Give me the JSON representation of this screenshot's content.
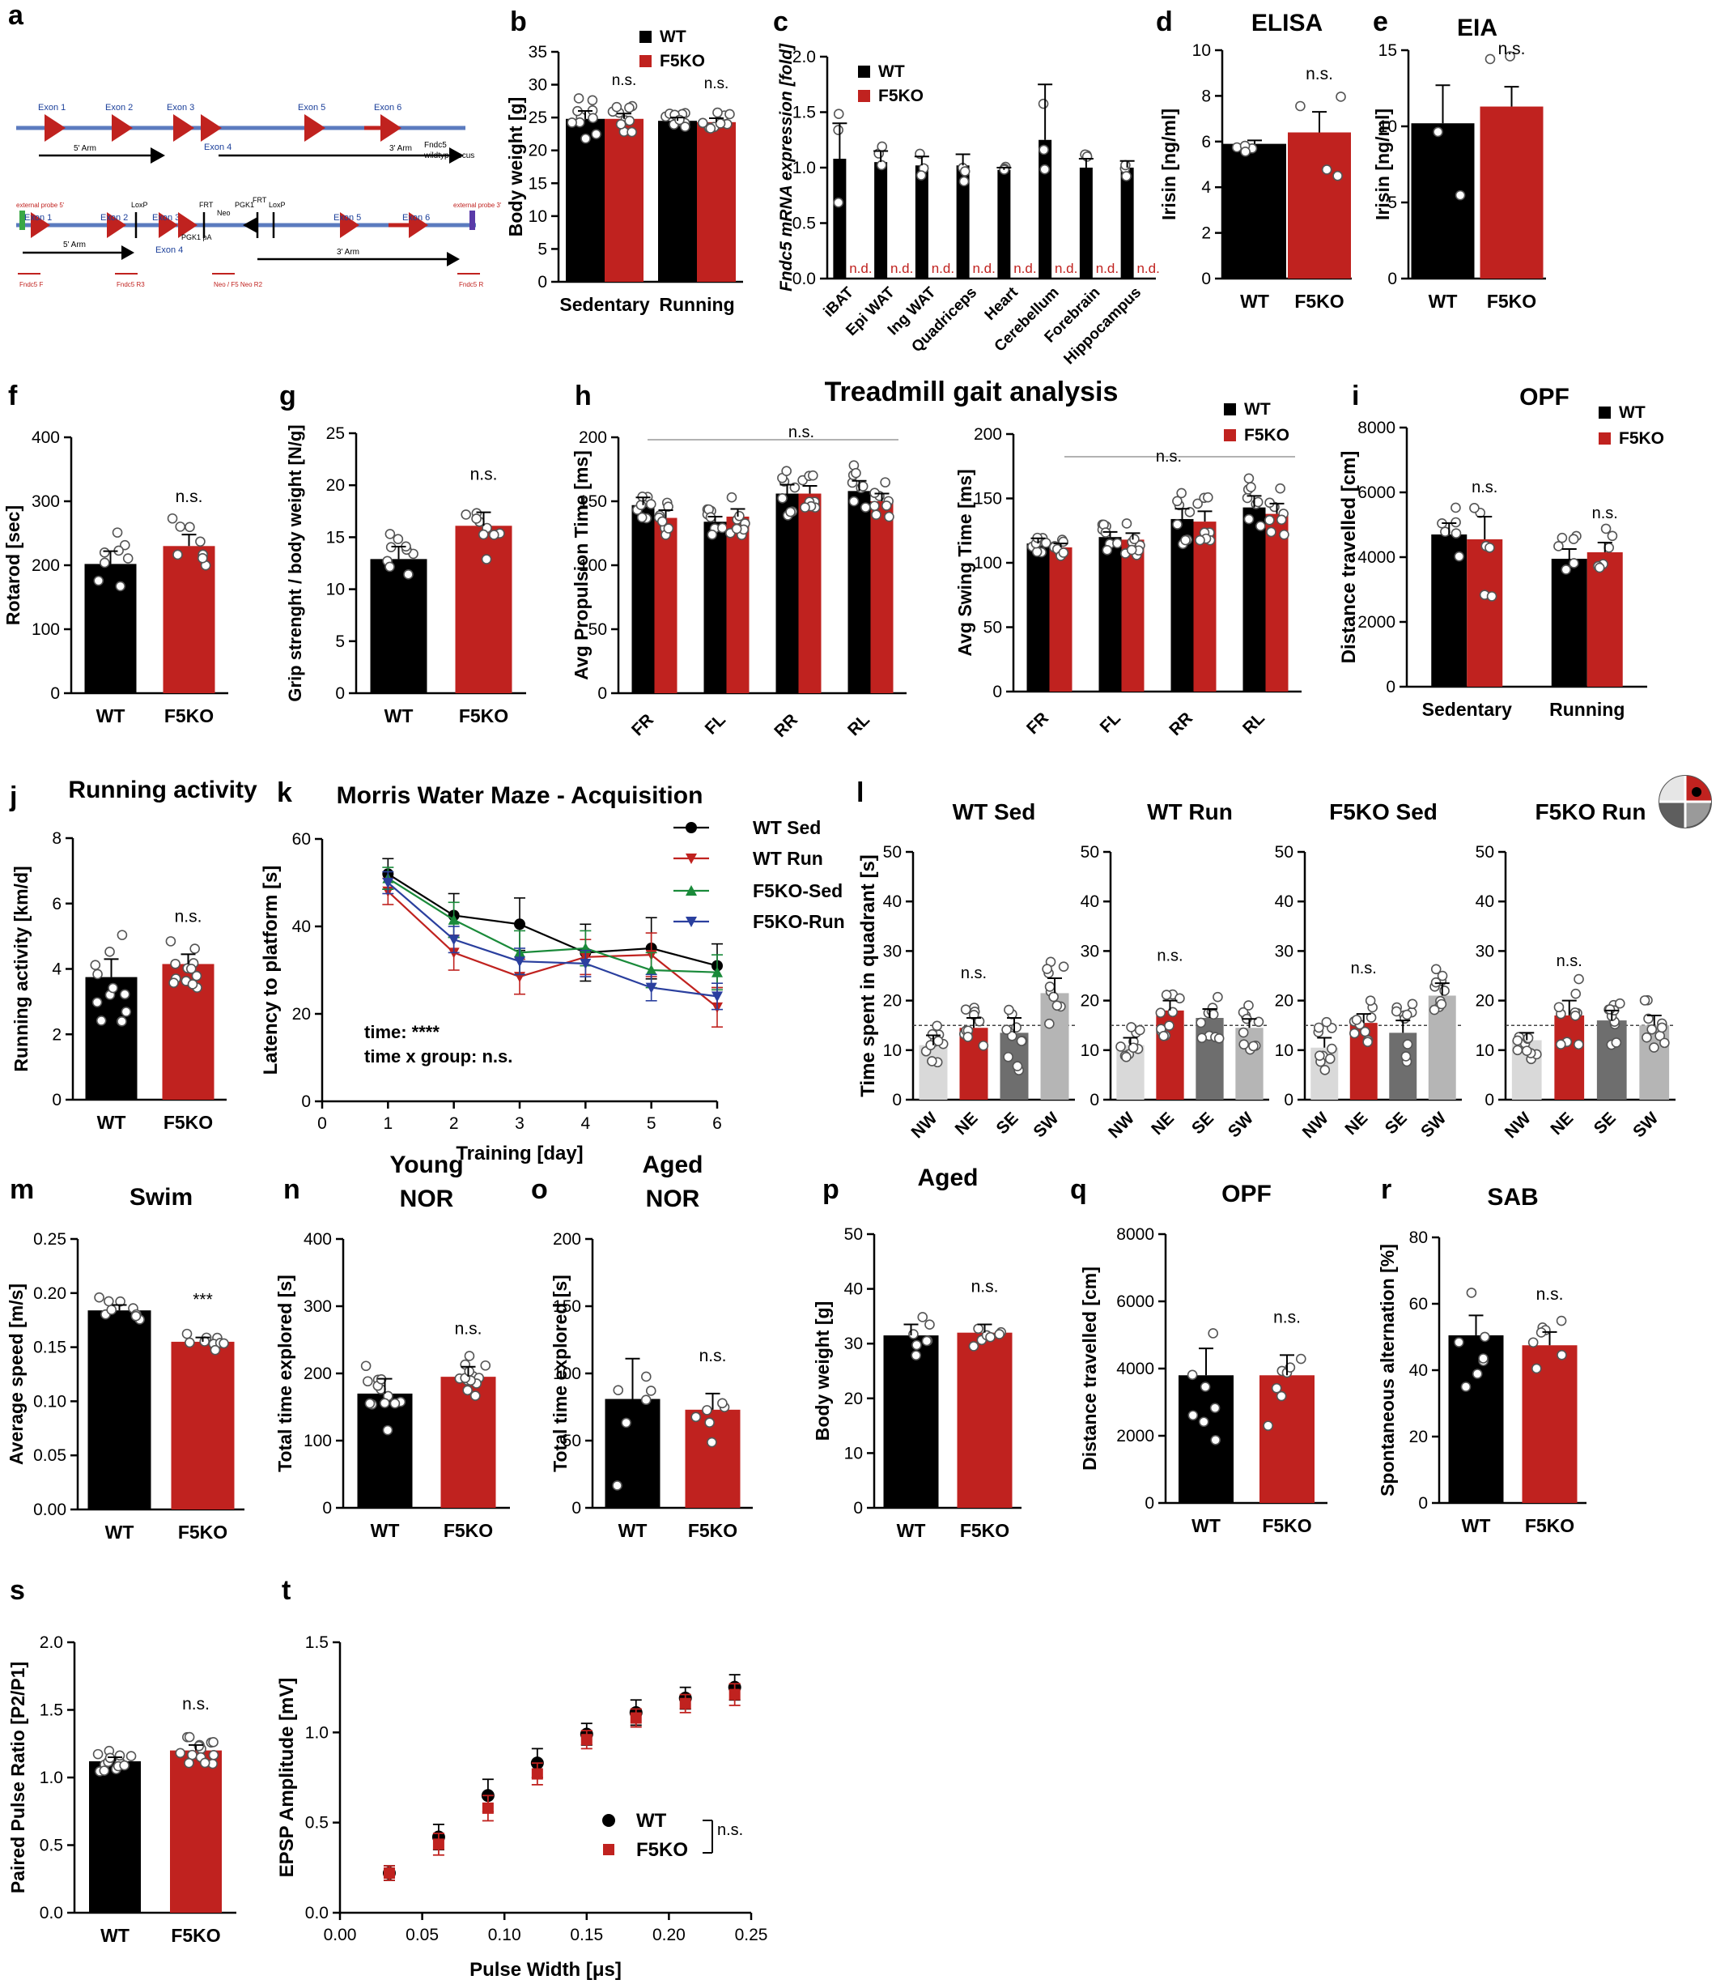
{
  "colors": {
    "wt": "#000000",
    "f5ko": "#c0221f",
    "light": "#d9d9d9",
    "dark": "#6e6e6e",
    "mid": "#b5b5b5",
    "green": "#1a8a3a",
    "blue": "#2a3f9e"
  },
  "legend": {
    "wt": "WT",
    "f5ko": "F5KO",
    "wt_sed": "WT Sed",
    "wt_run": "WT Run",
    "f5ko_sed": "F5KO-Sed",
    "f5ko_run": "F5KO-Run"
  },
  "panels": {
    "a": {
      "letter": "a",
      "wt_locus": [
        "Fndc5",
        "wildtype locus"
      ],
      "tg_locus": [
        "Fndc5",
        "targeted locus"
      ],
      "exons_wt": [
        "Exon 1",
        "Exon 2",
        "Exon 3",
        "Exon 4",
        "Exon 5",
        "Exon 6"
      ],
      "exons_tg": [
        "Exon 1",
        "Exon 2",
        "Exon 3",
        "Exon 4",
        "Exon 5",
        "Exon 6"
      ],
      "arms": [
        "5' Arm",
        "3' Arm",
        "5' Arm",
        "3' Arm"
      ],
      "elements": [
        "LoxP",
        "FRT",
        "Neo",
        "PGK1",
        "FRT",
        "LoxP",
        "PGK1 pA"
      ],
      "probes": [
        "external probe 5'",
        "external probe 3'"
      ],
      "primers": [
        "Fndc5 F",
        "Fndc5 R3",
        "Neo / F5 Neo R2",
        "Fndc5 R"
      ]
    }
  },
  "chart_data": [
    {
      "id": "b",
      "letter": "b",
      "type": "bar",
      "ylabel": "Body weight [g]",
      "ylim": [
        0,
        35
      ],
      "yticks": [
        0,
        5,
        10,
        15,
        20,
        25,
        30,
        35
      ],
      "categories": [
        "Sedentary",
        "Running"
      ],
      "series": [
        {
          "name": "WT",
          "values": [
            24.8,
            24.5
          ],
          "sem": [
            1.2,
            0.5
          ]
        },
        {
          "name": "F5KO",
          "values": [
            24.8,
            24.3
          ],
          "sem": [
            0.8,
            0.6
          ]
        }
      ],
      "annotations": [
        "n.s.",
        "n.s."
      ]
    },
    {
      "id": "c",
      "letter": "c",
      "type": "bar",
      "ylabel": "Fndc5 mRNA expression [fold]",
      "ylim": [
        0,
        2.0
      ],
      "yticks": [
        "0.0",
        "0.5",
        "1.0",
        "1.5",
        "2.0"
      ],
      "categories": [
        "iBAT",
        "Epi WAT",
        "Ing WAT",
        "Quadriceps",
        "Heart",
        "Cerebellum",
        "Forebrain",
        "Hippocampus"
      ],
      "series": [
        {
          "name": "WT",
          "values": [
            1.08,
            1.05,
            1.02,
            1.02,
            0.98,
            1.25,
            1.0,
            1.0
          ],
          "sem": [
            0.32,
            0.1,
            0.08,
            0.1,
            0.02,
            0.5,
            0.08,
            0.06
          ]
        },
        {
          "name": "F5KO",
          "values": [
            0,
            0,
            0,
            0,
            0,
            0,
            0,
            0
          ]
        }
      ],
      "annotations": [
        "n.d.",
        "n.d.",
        "n.d.",
        "n.d.",
        "n.d.",
        "n.d.",
        "n.d.",
        "n.d."
      ]
    },
    {
      "id": "d",
      "letter": "d",
      "type": "bar",
      "title": "ELISA",
      "ylabel": "Irisin [ng/ml]",
      "ylim": [
        0,
        10
      ],
      "yticks": [
        0,
        2,
        4,
        6,
        8,
        10
      ],
      "categories": [
        "WT",
        "F5KO"
      ],
      "values": [
        5.9,
        6.4
      ],
      "sem": [
        0.15,
        0.9
      ],
      "annotations": [
        "n.s."
      ]
    },
    {
      "id": "e",
      "letter": "e",
      "type": "bar",
      "title": "EIA",
      "ylabel": "Irisin [ng/ml]",
      "ylim": [
        0,
        15
      ],
      "yticks": [
        0,
        5,
        10,
        15
      ],
      "categories": [
        "WT",
        "F5KO"
      ],
      "values": [
        10.2,
        11.3
      ],
      "sem": [
        2.5,
        1.3
      ],
      "annotations": [
        "n.s."
      ]
    },
    {
      "id": "f",
      "letter": "f",
      "type": "bar",
      "ylabel": "Rotarod [sec]",
      "ylim": [
        0,
        400
      ],
      "yticks": [
        0,
        100,
        200,
        300,
        400
      ],
      "categories": [
        "WT",
        "F5KO"
      ],
      "values": [
        202,
        230
      ],
      "sem": [
        20,
        18
      ],
      "annotations": [
        "n.s."
      ]
    },
    {
      "id": "g",
      "letter": "g",
      "type": "bar",
      "ylabel": "Grip strenght / body weight [N/g]",
      "ylim": [
        0,
        25
      ],
      "yticks": [
        0,
        5,
        10,
        15,
        20,
        25
      ],
      "categories": [
        "WT",
        "F5KO"
      ],
      "values": [
        12.9,
        16.1
      ],
      "sem": [
        1.2,
        1.3
      ],
      "annotations": [
        "n.s."
      ]
    },
    {
      "id": "h1",
      "letter": "h",
      "type": "bar",
      "title": "Treadmill gait analysis",
      "ylabel": "Avg Propulsion Time [ms]",
      "ylim": [
        0,
        200
      ],
      "yticks": [
        0,
        50,
        100,
        150,
        200
      ],
      "categories": [
        "FR",
        "FL",
        "RR",
        "RL"
      ],
      "series": [
        {
          "name": "WT",
          "values": [
            147,
            134,
            156,
            158
          ],
          "sem": [
            6,
            4,
            7,
            8
          ]
        },
        {
          "name": "F5KO",
          "values": [
            137,
            138,
            156,
            150
          ],
          "sem": [
            6,
            6,
            6,
            6
          ]
        }
      ],
      "annotations": [
        "n.s."
      ]
    },
    {
      "id": "h2",
      "type": "bar",
      "ylabel": "Avg Swing Time [ms]",
      "ylim": [
        0,
        200
      ],
      "yticks": [
        0,
        50,
        100,
        150,
        200
      ],
      "categories": [
        "FR",
        "FL",
        "RR",
        "RL"
      ],
      "series": [
        {
          "name": "WT",
          "values": [
            115,
            120,
            134,
            143
          ],
          "sem": [
            4,
            4,
            8,
            9
          ]
        },
        {
          "name": "F5KO",
          "values": [
            112,
            118,
            132,
            138
          ],
          "sem": [
            3,
            5,
            8,
            8
          ]
        }
      ],
      "annotations": [
        "n.s."
      ]
    },
    {
      "id": "i",
      "letter": "i",
      "type": "bar",
      "title": "OPF",
      "ylabel": "Distance travelled [cm]",
      "ylim": [
        0,
        8000
      ],
      "yticks": [
        0,
        2000,
        4000,
        6000,
        8000
      ],
      "categories": [
        "Sedentary",
        "Running"
      ],
      "series": [
        {
          "name": "WT",
          "values": [
            4700,
            3950
          ],
          "sem": [
            350,
            300
          ]
        },
        {
          "name": "F5KO",
          "values": [
            4550,
            4150
          ],
          "sem": [
            700,
            300
          ]
        }
      ],
      "annotations": [
        "n.s.",
        "n.s."
      ]
    },
    {
      "id": "j",
      "letter": "j",
      "type": "bar",
      "title": "Running activity",
      "ylabel": "Running activity [km/d]",
      "ylim": [
        0,
        8
      ],
      "yticks": [
        0,
        2,
        4,
        6,
        8
      ],
      "categories": [
        "WT",
        "F5KO"
      ],
      "values": [
        3.75,
        4.15
      ],
      "sem": [
        0.55,
        0.3
      ],
      "annotations": [
        "n.s."
      ]
    },
    {
      "id": "k",
      "letter": "k",
      "type": "line",
      "title": "Morris Water Maze -  Acquisition",
      "xlabel": "Training [day]",
      "ylabel": "Latency to platform [s]",
      "xlim": [
        0,
        6
      ],
      "ylim": [
        0,
        60
      ],
      "xticks": [
        0,
        1,
        2,
        3,
        4,
        5,
        6
      ],
      "yticks": [
        0,
        20,
        40,
        60
      ],
      "x": [
        1,
        2,
        3,
        4,
        5,
        6
      ],
      "series": [
        {
          "name": "WT Sed",
          "values": [
            52,
            42.5,
            40.5,
            34,
            35,
            31
          ],
          "sem": [
            3.5,
            5,
            6,
            6.5,
            7,
            5
          ]
        },
        {
          "name": "WT Run",
          "values": [
            48,
            34,
            28.5,
            33,
            33.5,
            21.5
          ],
          "sem": [
            3,
            4,
            4,
            4,
            5,
            4.5
          ]
        },
        {
          "name": "F5KO-Sed",
          "values": [
            51,
            41.5,
            34,
            35,
            30,
            29.5
          ],
          "sem": [
            2.5,
            4,
            5,
            4,
            4,
            4
          ]
        },
        {
          "name": "F5KO-Run",
          "values": [
            50,
            37,
            32,
            31.5,
            26,
            24
          ],
          "sem": [
            2.5,
            3,
            3,
            3,
            3,
            3
          ]
        }
      ],
      "annotations": [
        "time: ****",
        "time x group: n.s."
      ]
    },
    {
      "id": "l",
      "letter": "l",
      "type": "bar",
      "ylabel": "Time spent in quadrant [s]",
      "ylim": [
        0,
        50
      ],
      "yticks": [
        0,
        10,
        20,
        30,
        40,
        50
      ],
      "chance_level": 15,
      "categories": [
        "NW",
        "NE",
        "SE",
        "SW"
      ],
      "panels": [
        {
          "title": "WT Sed",
          "values": [
            11,
            14.5,
            13.5,
            21.5
          ],
          "sem": [
            2,
            2,
            3,
            3
          ]
        },
        {
          "title": "WT Run",
          "values": [
            11,
            18,
            16.5,
            14.5
          ],
          "sem": [
            1.5,
            2,
            1.8,
            1.8
          ]
        },
        {
          "title": "F5KO Sed",
          "values": [
            10.5,
            15.5,
            13.5,
            21
          ],
          "sem": [
            2,
            1.8,
            2.5,
            2.5
          ]
        },
        {
          "title": "F5KO Run",
          "values": [
            12,
            17,
            16,
            15
          ],
          "sem": [
            1.5,
            3,
            2,
            2
          ]
        }
      ],
      "annotations": [
        "n.s.",
        "n.s.",
        "n.s.",
        "n.s."
      ]
    },
    {
      "id": "m",
      "letter": "m",
      "type": "bar",
      "title": "Swim",
      "ylabel": "Average speed [m/s]",
      "ylim": [
        0,
        0.25
      ],
      "yticks": [
        "0.00",
        "0.05",
        "0.10",
        "0.15",
        "0.20",
        "0.25"
      ],
      "categories": [
        "WT",
        "F5KO"
      ],
      "values": [
        0.184,
        0.155
      ],
      "sem": [
        0.005,
        0.004
      ],
      "annotations": [
        "***"
      ]
    },
    {
      "id": "n",
      "letter": "n",
      "type": "bar",
      "title": [
        "Young",
        "NOR"
      ],
      "ylabel": "Total time explored [s]",
      "ylim": [
        0,
        400
      ],
      "yticks": [
        0,
        100,
        200,
        300,
        400
      ],
      "categories": [
        "WT",
        "F5KO"
      ],
      "values": [
        170,
        195
      ],
      "sem": [
        22,
        15
      ],
      "annotations": [
        "n.s."
      ]
    },
    {
      "id": "o",
      "letter": "o",
      "type": "bar",
      "title": [
        "Aged",
        "NOR"
      ],
      "ylabel": "Total time explored [s]",
      "ylim": [
        0,
        200
      ],
      "yticks": [
        0,
        50,
        100,
        150,
        200
      ],
      "categories": [
        "WT",
        "F5KO"
      ],
      "values": [
        81,
        73
      ],
      "sem": [
        30,
        12
      ],
      "annotations": [
        "n.s."
      ]
    },
    {
      "id": "p",
      "letter": "p",
      "type": "bar",
      "title": "Aged",
      "ylabel": "Body weight [g]",
      "ylim": [
        0,
        50
      ],
      "yticks": [
        0,
        10,
        20,
        30,
        40,
        50
      ],
      "categories": [
        "WT",
        "F5KO"
      ],
      "values": [
        31.5,
        32
      ],
      "sem": [
        2,
        1.5
      ],
      "annotations": [
        "n.s."
      ]
    },
    {
      "id": "q",
      "letter": "q",
      "type": "bar",
      "title": "OPF",
      "ylabel": "Distance travelled [cm]",
      "ylim": [
        0,
        8000
      ],
      "yticks": [
        0,
        2000,
        4000,
        6000,
        8000
      ],
      "categories": [
        "WT",
        "F5KO"
      ],
      "values": [
        3800,
        3800
      ],
      "sem": [
        800,
        600
      ],
      "annotations": [
        "n.s."
      ]
    },
    {
      "id": "r",
      "letter": "r",
      "type": "bar",
      "title": "SAB",
      "ylabel": "Spontaneous alternation [%]",
      "ylim": [
        0,
        80
      ],
      "yticks": [
        0,
        20,
        40,
        60,
        80
      ],
      "categories": [
        "WT",
        "F5KO"
      ],
      "values": [
        50.5,
        47.5
      ],
      "sem": [
        6,
        4
      ],
      "annotations": [
        "n.s."
      ]
    },
    {
      "id": "s",
      "letter": "s",
      "type": "bar",
      "ylabel": "Paired Pulse Ratio [P2/P1]",
      "ylim": [
        0,
        2.0
      ],
      "yticks": [
        "0.0",
        "0.5",
        "1.0",
        "1.5",
        "2.0"
      ],
      "categories": [
        "WT",
        "F5KO"
      ],
      "values": [
        1.12,
        1.2
      ],
      "sem": [
        0.03,
        0.04
      ],
      "annotations": [
        "n.s."
      ]
    },
    {
      "id": "t",
      "letter": "t",
      "type": "scatter",
      "xlabel": "Pulse Width [μs]",
      "ylabel": "EPSP Amplitude [mV]",
      "xlim": [
        0,
        0.25
      ],
      "ylim": [
        0,
        1.5
      ],
      "xticks": [
        "0.00",
        "0.05",
        "0.10",
        "0.15",
        "0.20",
        "0.25"
      ],
      "yticks": [
        "0.0",
        "0.5",
        "1.0",
        "1.5"
      ],
      "x": [
        0.03,
        0.06,
        0.09,
        0.12,
        0.15,
        0.18,
        0.21,
        0.24
      ],
      "series": [
        {
          "name": "WT",
          "values": [
            0.22,
            0.42,
            0.65,
            0.83,
            0.99,
            1.11,
            1.19,
            1.25
          ],
          "sem": [
            0.04,
            0.07,
            0.09,
            0.08,
            0.06,
            0.07,
            0.06,
            0.07
          ]
        },
        {
          "name": "F5KO",
          "values": [
            0.22,
            0.38,
            0.58,
            0.77,
            0.96,
            1.08,
            1.16,
            1.21
          ],
          "sem": [
            0.04,
            0.06,
            0.07,
            0.06,
            0.05,
            0.05,
            0.05,
            0.06
          ]
        }
      ],
      "annotations": [
        "n.s."
      ]
    }
  ]
}
